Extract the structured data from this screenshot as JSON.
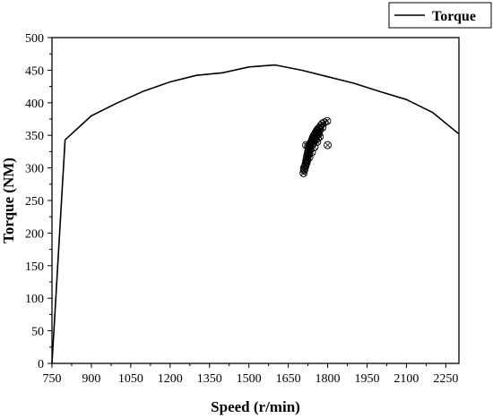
{
  "chart_data": {
    "type": "line",
    "title": "",
    "xlabel": "Speed (r/min)",
    "ylabel": "Torque (NM)",
    "xlim": [
      750,
      2300
    ],
    "ylim": [
      0,
      500
    ],
    "x_ticks": [
      750,
      900,
      1050,
      1200,
      1350,
      1500,
      1650,
      1800,
      1950,
      2100,
      2250
    ],
    "y_ticks": [
      0,
      50,
      100,
      150,
      200,
      250,
      300,
      350,
      400,
      450,
      500
    ],
    "legend": {
      "position": "top-right",
      "entries": [
        "Torque"
      ]
    },
    "grid": false,
    "series": [
      {
        "name": "Torque",
        "style": "line",
        "color": "#000000",
        "x": [
          750,
          800,
          900,
          1000,
          1100,
          1200,
          1300,
          1400,
          1500,
          1600,
          1700,
          1800,
          1900,
          2000,
          2100,
          2200,
          2300
        ],
        "y": [
          0,
          343,
          380,
          400,
          418,
          432,
          442,
          446,
          455,
          458,
          450,
          440,
          430,
          417,
          405,
          385,
          352
        ]
      },
      {
        "style": "scatter",
        "marker": "circle-x",
        "color": "#000000",
        "x": [
          1708,
          1712,
          1714,
          1716,
          1718,
          1720,
          1722,
          1724,
          1726,
          1728,
          1730,
          1732,
          1734,
          1736,
          1738,
          1740,
          1742,
          1744,
          1746,
          1748,
          1750,
          1752,
          1754,
          1756,
          1758,
          1760,
          1762,
          1764,
          1766,
          1770,
          1774,
          1780,
          1788,
          1798,
          1710,
          1720,
          1730,
          1740,
          1750,
          1760,
          1770,
          1710,
          1716,
          1722,
          1728,
          1734,
          1740,
          1746,
          1752,
          1758,
          1764,
          1770,
          1726,
          1744,
          1762,
          1780,
          1800,
          1718
        ],
        "y": [
          292,
          298,
          302,
          306,
          310,
          314,
          318,
          322,
          326,
          328,
          330,
          333,
          336,
          338,
          340,
          342,
          344,
          346,
          348,
          350,
          342,
          352,
          354,
          348,
          356,
          358,
          345,
          360,
          352,
          362,
          365,
          368,
          370,
          372,
          300,
          308,
          316,
          324,
          332,
          340,
          348,
          296,
          304,
          312,
          320,
          328,
          336,
          338,
          344,
          350,
          354,
          358,
          334,
          346,
          356,
          362,
          335,
          335
        ]
      }
    ]
  }
}
